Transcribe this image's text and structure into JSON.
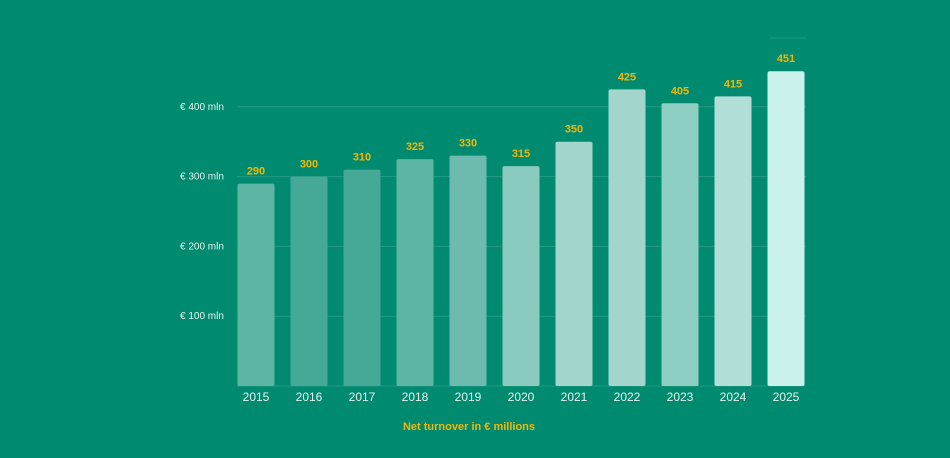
{
  "chart_data": {
    "type": "bar",
    "title": "",
    "xlabel": "Net turnover in € millions",
    "ylabel": "",
    "categories": [
      "2015",
      "2016",
      "2017",
      "2018",
      "2019",
      "2020",
      "2021",
      "2022",
      "2023",
      "2024",
      "2025"
    ],
    "values": [
      290,
      300,
      310,
      325,
      330,
      315,
      350,
      425,
      405,
      415,
      451
    ],
    "data_labels": [
      "290",
      "300",
      "310",
      "325",
      "330",
      "315",
      "350",
      "425",
      "405",
      "415",
      "451"
    ],
    "ylim": [
      0,
      400
    ],
    "yticks": [
      {
        "value": 100,
        "label": "€ 100 mln"
      },
      {
        "value": 200,
        "label": "€ 200 mln"
      },
      {
        "value": 300,
        "label": "€ 300 mln"
      },
      {
        "value": 400,
        "label": "€ 400 mln"
      }
    ],
    "grid": true,
    "legend": "none",
    "colors": {
      "background": "#008A70",
      "label": "#F2B705",
      "bars": [
        "#5DB5A6",
        "#46A896",
        "#46A896",
        "#5DB5A6",
        "#6DBBAE",
        "#8ACABF",
        "#A2D6CC",
        "#A2D6CC",
        "#8ECEC3",
        "#B2DED8",
        "#CAF1EC"
      ]
    }
  }
}
